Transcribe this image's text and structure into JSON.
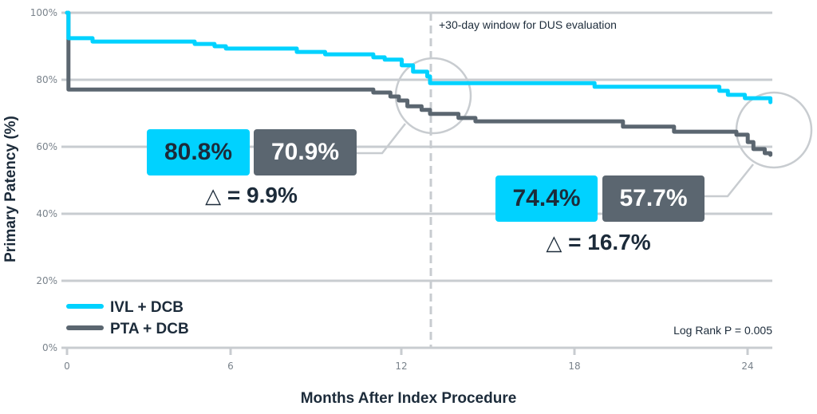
{
  "chart_data": {
    "type": "line",
    "subtype": "kaplan-meier-step",
    "title": "",
    "xlabel": "Months After Index Procedure",
    "ylabel": "Primary Patency (%)",
    "xlim": [
      0,
      25
    ],
    "ylim": [
      0,
      100
    ],
    "x_ticks": [
      0,
      6,
      12,
      18,
      24
    ],
    "y_ticks": [
      0,
      20,
      40,
      60,
      80,
      100
    ],
    "y_tick_labels": [
      "0%",
      "20%",
      "40%",
      "60%",
      "80%",
      "100%"
    ],
    "grid": "horizontal",
    "legend_position": "lower-left",
    "series": [
      {
        "name": "IVL + DCB",
        "color": "#00d2ff",
        "x": [
          0,
          0.05,
          0.9,
          4.5,
          5.2,
          5.6,
          8.1,
          9.1,
          10.8,
          11.2,
          11.8,
          12.2,
          12.7,
          12.8,
          18.6,
          23.0,
          23.3,
          23.9,
          24.8
        ],
        "y": [
          100,
          92.4,
          91.4,
          90.7,
          90.0,
          89.3,
          88.3,
          87.6,
          86.7,
          86.0,
          84.3,
          82.4,
          81.0,
          79.0,
          77.9,
          76.7,
          75.5,
          74.5,
          73.3
        ]
      },
      {
        "name": "PTA + DCB",
        "color": "#5b6670",
        "x": [
          0,
          0.05,
          10.8,
          11.4,
          11.7,
          12.0,
          12.5,
          12.8,
          13.8,
          14.4,
          19.6,
          21.4,
          23.6,
          24.0,
          24.2,
          24.6,
          24.8
        ],
        "y": [
          100,
          77.1,
          76.2,
          75.0,
          73.8,
          72.1,
          71.0,
          69.8,
          68.6,
          67.6,
          66.0,
          64.5,
          63.6,
          61.4,
          59.3,
          58.1,
          57.6
        ]
      }
    ],
    "reference_line": {
      "x": 13,
      "style": "dashed",
      "label": "+30-day window for DUS evaluation"
    },
    "annotations": [
      {
        "at_month": 12,
        "ivl_value": "80.8%",
        "pta_value": "70.9%",
        "delta": "9.9%"
      },
      {
        "at_month": 24,
        "ivl_value": "74.4%",
        "pta_value": "57.7%",
        "delta": "16.7%"
      }
    ],
    "stat_text": "Log Rank P = 0.005"
  },
  "colors": {
    "ivl": "#00d2ff",
    "pta": "#5b6670",
    "grid": "#c8ccd0",
    "text": "#1c2b3a",
    "tick": "#7a838c"
  },
  "labels": {
    "x_axis_title": "Months After Index Procedure",
    "y_axis_title": "Primary Patency (%)",
    "window_note": "+30-day window for DUS evaluation",
    "legend_ivl": "IVL + DCB",
    "legend_pta": "PTA + DCB",
    "log_rank": "Log Rank P = 0.005",
    "callout12": {
      "ivl": "80.8%",
      "pta": "70.9%",
      "delta_symbol": "△",
      "delta_text": "= 9.9%"
    },
    "callout24": {
      "ivl": "74.4%",
      "pta": "57.7%",
      "delta_symbol": "△",
      "delta_text": "= 16.7%"
    },
    "y_ticks": [
      "100%",
      "80%",
      "60%",
      "40%",
      "20%",
      "0%"
    ],
    "x_ticks": [
      "0",
      "6",
      "12",
      "18",
      "24"
    ]
  }
}
